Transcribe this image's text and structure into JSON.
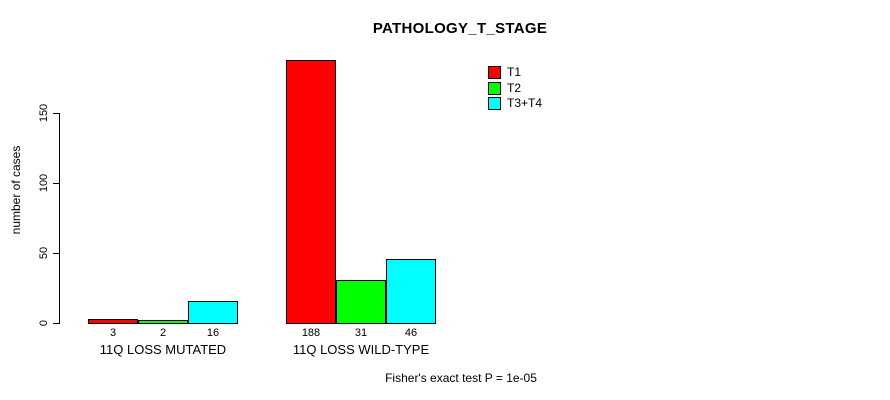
{
  "chart_data": {
    "type": "bar",
    "title": "PATHOLOGY_T_STAGE",
    "xlabel": "",
    "ylabel": "number of cases",
    "categories": [
      "11Q LOSS MUTATED",
      "11Q LOSS WILD-TYPE"
    ],
    "series": [
      {
        "name": "T1",
        "color": "#FF0000",
        "values": [
          3,
          188
        ]
      },
      {
        "name": "T2",
        "color": "#00FF00",
        "values": [
          2,
          31
        ]
      },
      {
        "name": "T3+T4",
        "color": "#00FFFF",
        "values": [
          16,
          46
        ]
      }
    ],
    "bar_value_labels": [
      [
        "3",
        "2",
        "16"
      ],
      [
        "188",
        "31",
        "46"
      ]
    ],
    "y_ticks": [
      0,
      50,
      100,
      150
    ],
    "ylim": [
      0,
      188
    ],
    "grid": false,
    "legend_position": "top-right",
    "legend_entries": [
      {
        "label": "T1",
        "color": "#FF0000"
      },
      {
        "label": "T2",
        "color": "#00FF00"
      },
      {
        "label": "T3+T4",
        "color": "#00FFFF"
      }
    ],
    "annotation": "Fisher's exact test P = 1e-05"
  }
}
